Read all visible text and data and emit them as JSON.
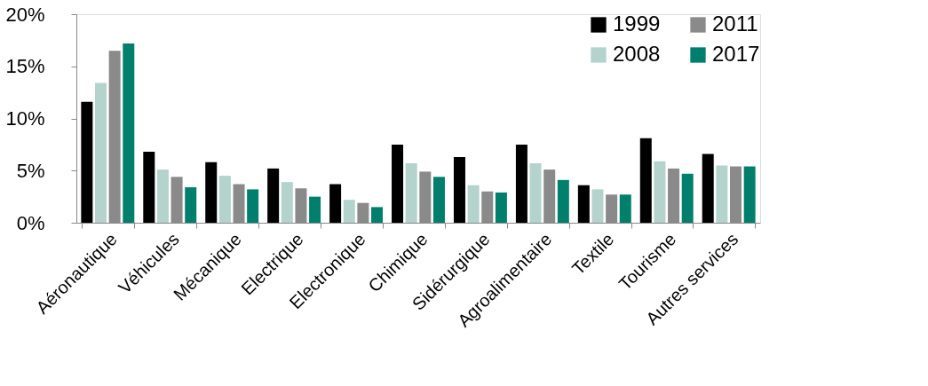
{
  "chart_data": {
    "type": "bar",
    "categories": [
      "Aéronautique",
      "Véhicules",
      "Mécanique",
      "Electrique",
      "Electronique",
      "Chimique",
      "Sidérurgique",
      "Agroalimentaire",
      "Textile",
      "Tourisme",
      "Autres services"
    ],
    "series": [
      {
        "name": "1999",
        "color": "#000000",
        "values": [
          11.6,
          6.8,
          5.8,
          5.2,
          3.7,
          7.5,
          6.3,
          7.5,
          3.6,
          8.1,
          6.6
        ]
      },
      {
        "name": "2008",
        "color": "#b3d3cc",
        "values": [
          13.4,
          5.1,
          4.5,
          3.9,
          2.2,
          5.7,
          3.6,
          5.7,
          3.2,
          5.9,
          5.5
        ]
      },
      {
        "name": "2011",
        "color": "#8a8a8a",
        "values": [
          16.5,
          4.4,
          3.7,
          3.3,
          1.9,
          4.9,
          3.0,
          5.1,
          2.7,
          5.2,
          5.4
        ]
      },
      {
        "name": "2017",
        "color": "#00806c",
        "values": [
          17.2,
          3.4,
          3.2,
          2.5,
          1.5,
          4.4,
          2.9,
          4.1,
          2.7,
          4.7,
          5.4
        ]
      }
    ],
    "ylim": [
      0,
      20
    ],
    "yticks": [
      {
        "value": 0,
        "label": "0%"
      },
      {
        "value": 5,
        "label": "5%"
      },
      {
        "value": 10,
        "label": "10%"
      },
      {
        "value": 15,
        "label": "15%"
      },
      {
        "value": 20,
        "label": "20%"
      }
    ],
    "grid": false,
    "legend": "top right"
  }
}
